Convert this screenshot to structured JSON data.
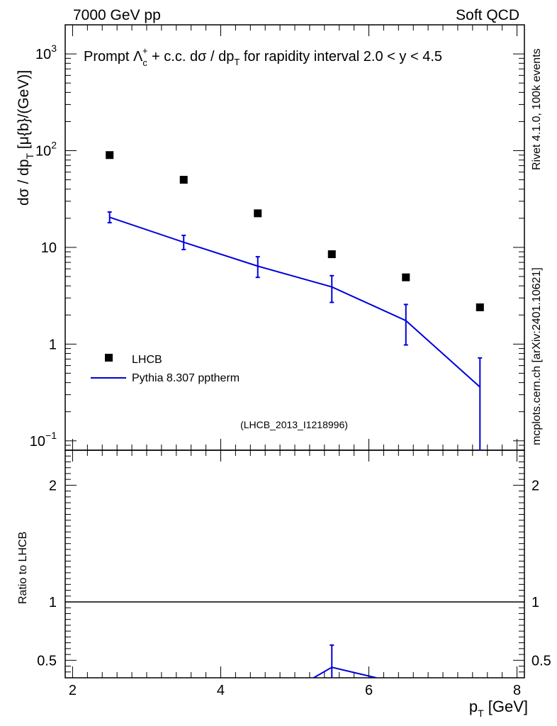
{
  "header": {
    "left": "7000 GeV pp",
    "right": "Soft QCD"
  },
  "side_labels": {
    "rivet": "Rivet 4.1.0,  100k events",
    "mcplots": "mcplots.cern.ch [arXiv:2401.10621]"
  },
  "main_panel": {
    "title_prefix": "Prompt Λ",
    "title_sub": "c",
    "title_sup": "+",
    "title_middle": " + c.c.  dσ / dp",
    "title_sub2": "T",
    "title_suffix": " for rapidity interval 2.0 < y < 4.5",
    "ylabel_main": "dσ / dp",
    "ylabel_sub": "T",
    "ylabel_units": " [μ{b}/(GeV)]",
    "analysis_id": "(LHCB_2013_I1218996)",
    "y_ticks": [
      {
        "value": 1000,
        "label": "10",
        "exp": "3"
      },
      {
        "value": 100,
        "label": "10",
        "exp": "2"
      },
      {
        "value": 10,
        "label": "10",
        "exp": ""
      },
      {
        "value": 1,
        "label": "1",
        "exp": ""
      },
      {
        "value": 0.1,
        "label": "10",
        "exp": "−1"
      }
    ]
  },
  "ratio_panel": {
    "ylabel": "Ratio to LHCB",
    "y_ticks": [
      {
        "value": 2,
        "label": "2"
      },
      {
        "value": 1,
        "label": "1"
      },
      {
        "value": 0.5,
        "label": "0.5"
      }
    ]
  },
  "x_axis": {
    "label_main": "p",
    "label_sub": "T",
    "label_units": " [GeV]",
    "ticks": [
      {
        "value": 2,
        "label": "2"
      },
      {
        "value": 4,
        "label": "4"
      },
      {
        "value": 6,
        "label": "6"
      },
      {
        "value": 8,
        "label": "8"
      }
    ]
  },
  "legend": {
    "entries": [
      "LHCB",
      "Pythia 8.307 pptherm"
    ]
  },
  "colors": {
    "data": "#000000",
    "mc": "#0000dd"
  },
  "chart_data": {
    "type": "scatter",
    "title": "Prompt Λc+ + c.c. dσ/dpT for rapidity interval 2.0 < y < 4.5",
    "xlabel": "pT [GeV]",
    "ylabel": "dσ / dpT [μ{b}/(GeV)]",
    "xlim": [
      1.9,
      8.1
    ],
    "ylim": [
      0.08,
      2000
    ],
    "yscale": "log",
    "series": [
      {
        "name": "LHCB",
        "style": "markers",
        "x": [
          2.5,
          3.5,
          4.5,
          5.5,
          6.5,
          7.5
        ],
        "y": [
          90,
          50,
          22.5,
          8.5,
          4.9,
          2.4
        ]
      },
      {
        "name": "Pythia 8.307 pptherm",
        "style": "line",
        "x": [
          2.5,
          3.5,
          4.5,
          5.5,
          6.5,
          7.5
        ],
        "y": [
          20.5,
          11.3,
          6.4,
          3.9,
          1.75,
          0.36
        ],
        "err_lo": [
          2.5,
          1.8,
          1.5,
          1.2,
          0.77,
          0.36
        ],
        "err_hi": [
          2.7,
          2.0,
          1.6,
          1.2,
          0.82,
          0.36
        ]
      }
    ],
    "ratio": {
      "ylabel": "Ratio to LHCB",
      "ylim": [
        0.35,
        2.3
      ],
      "reference": 1,
      "x": [
        5.2,
        5.5,
        6.1
      ],
      "y": [
        0.33,
        0.44,
        0.35
      ],
      "err_point": {
        "x": 5.5,
        "lo": 0.3,
        "hi": 0.63
      }
    }
  }
}
